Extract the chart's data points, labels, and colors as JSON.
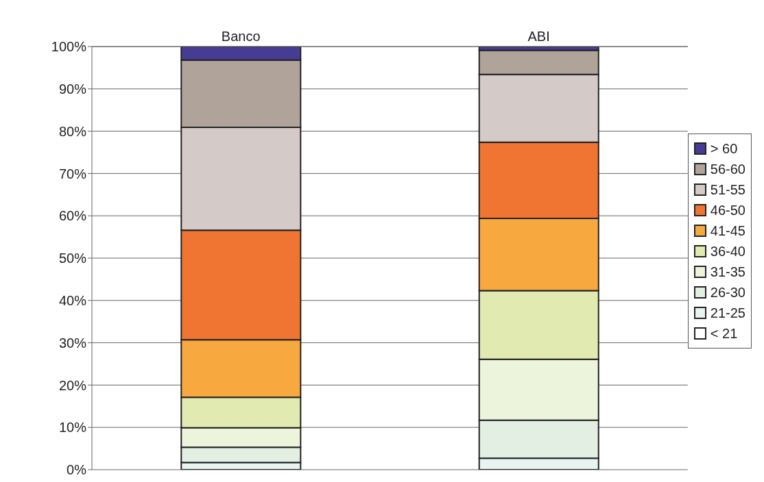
{
  "chart_data": {
    "type": "bar",
    "stacked": true,
    "categories": [
      "Banco",
      "ABI"
    ],
    "series": [
      {
        "name": "< 21",
        "color": "#ffffff",
        "values": [
          0,
          0
        ]
      },
      {
        "name": "21-25",
        "color": "#e9f4f2",
        "values": [
          1.7,
          2.7
        ]
      },
      {
        "name": "26-30",
        "color": "#e3efe2",
        "values": [
          3.6,
          9.0
        ]
      },
      {
        "name": "31-35",
        "color": "#edf4dc",
        "values": [
          4.6,
          14.4
        ]
      },
      {
        "name": "36-40",
        "color": "#e1eab0",
        "values": [
          7.2,
          16.2
        ]
      },
      {
        "name": "41-45",
        "color": "#f7a940",
        "values": [
          13.6,
          17.1
        ]
      },
      {
        "name": "46-50",
        "color": "#f07532",
        "values": [
          25.9,
          18.0
        ]
      },
      {
        "name": "51-55",
        "color": "#d4cbc8",
        "values": [
          24.3,
          16.0
        ]
      },
      {
        "name": "56-60",
        "color": "#b0a49a",
        "values": [
          15.9,
          5.7
        ]
      },
      {
        "name": "> 60",
        "color": "#463c94",
        "values": [
          3.2,
          0.9
        ]
      }
    ],
    "ylim": [
      0,
      100
    ],
    "yticks": [
      {
        "value": 0,
        "label": "0%"
      },
      {
        "value": 10,
        "label": "10%"
      },
      {
        "value": 20,
        "label": "20%"
      },
      {
        "value": 30,
        "label": "30%"
      },
      {
        "value": 40,
        "label": "40%"
      },
      {
        "value": 50,
        "label": "50%"
      },
      {
        "value": 60,
        "label": "60%"
      },
      {
        "value": 70,
        "label": "70%"
      },
      {
        "value": 80,
        "label": "80%"
      },
      {
        "value": 90,
        "label": "90%"
      },
      {
        "value": 100,
        "label": "100%"
      }
    ],
    "grid": "y",
    "legend": "right"
  }
}
